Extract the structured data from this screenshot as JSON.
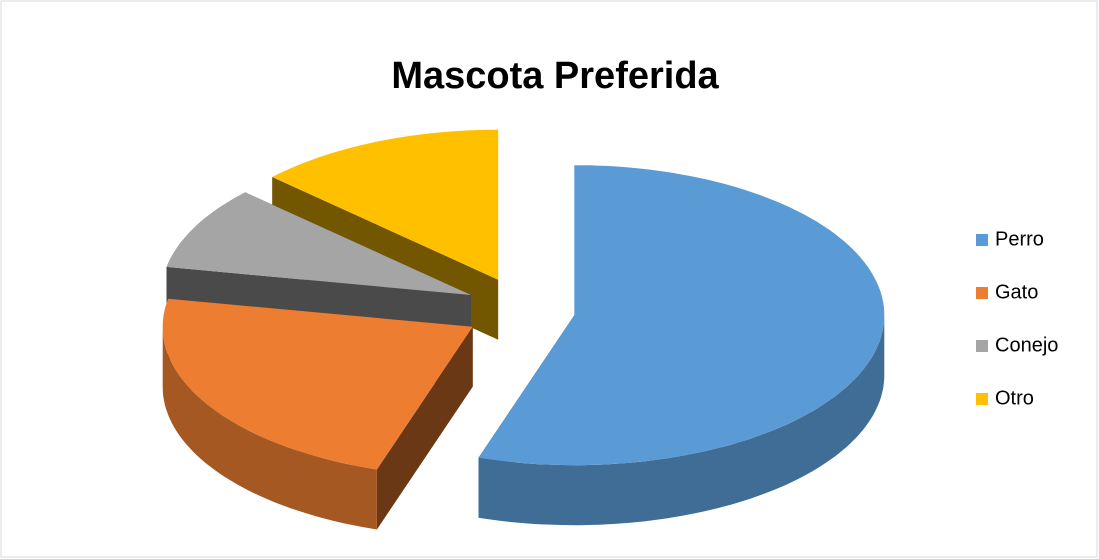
{
  "chart_data": {
    "type": "pie3d",
    "title": "Mascota Preferida",
    "categories": [
      "Perro",
      "Gato",
      "Conejo",
      "Otro"
    ],
    "values": [
      55,
      23,
      9,
      13
    ],
    "colors": [
      "#5b9bd5",
      "#ed7d31",
      "#a5a5a5",
      "#ffc000"
    ],
    "legend": "right"
  }
}
